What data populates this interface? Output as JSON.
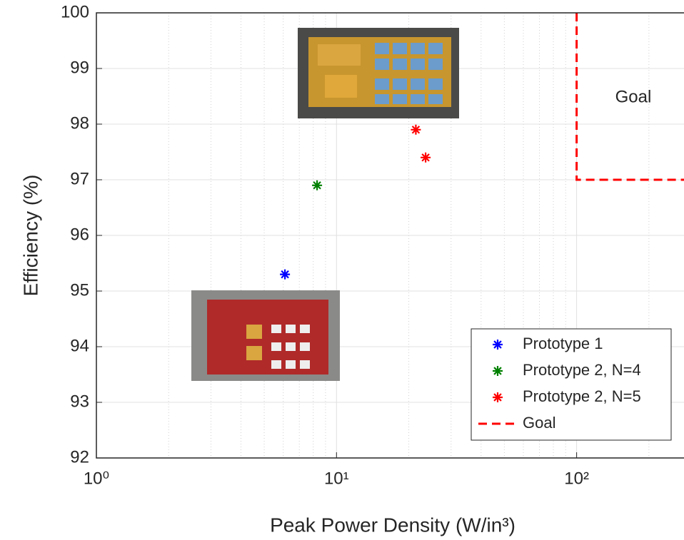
{
  "chart_data": {
    "type": "scatter",
    "x_label": "Peak Power Density (W/in³)",
    "y_label": "Efficiency (%)",
    "annotation": "Goal",
    "xscale": "log",
    "xlim": [
      1,
      280
    ],
    "ylim": [
      92,
      100
    ],
    "xticks": [
      {
        "value": 1,
        "label": "10⁰"
      },
      {
        "value": 10,
        "label": "10¹"
      },
      {
        "value": 100,
        "label": "10²"
      }
    ],
    "xminorticks": [
      2,
      3,
      4,
      5,
      6,
      7,
      8,
      9,
      20,
      30,
      40,
      50,
      60,
      70,
      80,
      90,
      200
    ],
    "yticks": [
      92,
      93,
      94,
      95,
      96,
      97,
      98,
      99,
      100
    ],
    "grid": true,
    "legend": "lower right",
    "series": [
      {
        "name": "Prototype 1",
        "color": "#0000ff",
        "mode": "markers",
        "x": [
          6.1
        ],
        "values": [
          95.3
        ]
      },
      {
        "name": "Prototype 2, N=4",
        "color": "#008000",
        "mode": "markers",
        "x": [
          8.3
        ],
        "values": [
          96.9
        ]
      },
      {
        "name": "Prototype 2, N=5",
        "color": "#ff0000",
        "mode": "markers",
        "x": [
          21.4,
          23.5
        ],
        "values": [
          97.9,
          97.4
        ]
      },
      {
        "name": "Goal",
        "color": "#ff0000",
        "mode": "dashed-line",
        "x": [
          100,
          100,
          280
        ],
        "values": [
          100,
          97,
          97
        ]
      }
    ]
  }
}
